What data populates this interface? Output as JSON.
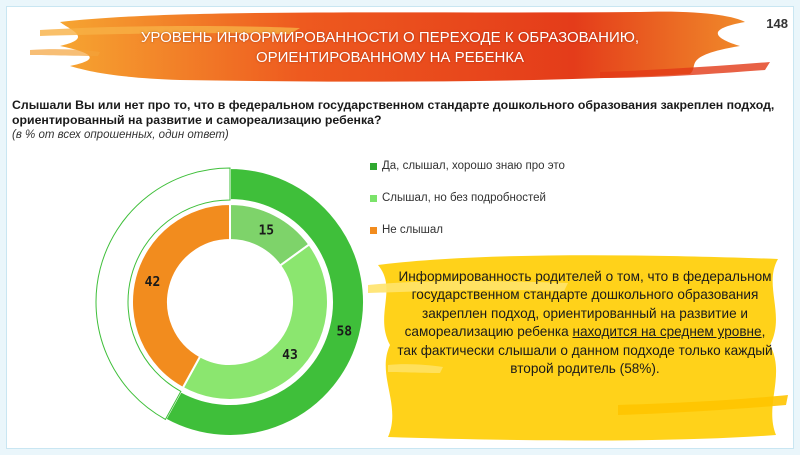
{
  "header": {
    "title_line1": "УРОВЕНЬ ИНФОРМИРОВАННОСТИ О ПЕРЕХОДЕ К ОБРАЗОВАНИЮ,",
    "title_line2": "ОРИЕНТИРОВАННОМУ НА РЕБЕНКА",
    "page_number": "148"
  },
  "question": "Слышали Вы или нет про то, что в федеральном государственном стандарте дошкольного образования закреплен подход, ориентированный на развитие и самореализацию ребенка?",
  "note": "(в % от всех опрошенных, один ответ)",
  "chart_data": [
    {
      "type": "pie",
      "ring": "inner",
      "categories": [
        "Да, слышал, хорошо знаю про это",
        "Слышал, но без подробностей",
        "Не слышал"
      ],
      "values": [
        15,
        43,
        42
      ],
      "colors": [
        "#7ed36a",
        "#8be66f",
        "#f28c1e"
      ]
    },
    {
      "type": "pie",
      "ring": "outer",
      "categories": [
        "Слышал",
        "Не слышал"
      ],
      "values": [
        58,
        42
      ],
      "colors": [
        "#3fbf3a",
        "#ffffff"
      ]
    }
  ],
  "legend": [
    {
      "label": "Да, слышал, хорошо знаю про это",
      "color": "#2fa82f"
    },
    {
      "label": "Слышал, но без подробностей",
      "color": "#7be36a"
    },
    {
      "label": "Не слышал",
      "color": "#f28c1e"
    }
  ],
  "callout": {
    "part1": "Информированность родителей о том, что в федеральном государственном стандарте дошкольного образования закреплен подход, ориентированный на развитие и самореализацию ребенка ",
    "emphasis": "находится на среднем уровне",
    "part2": ", так фактически слышали о данном подходе только каждый второй родитель (58%)."
  },
  "colors": {
    "header_brush": "#e8401c",
    "callout_brush": "#ffd21a"
  }
}
